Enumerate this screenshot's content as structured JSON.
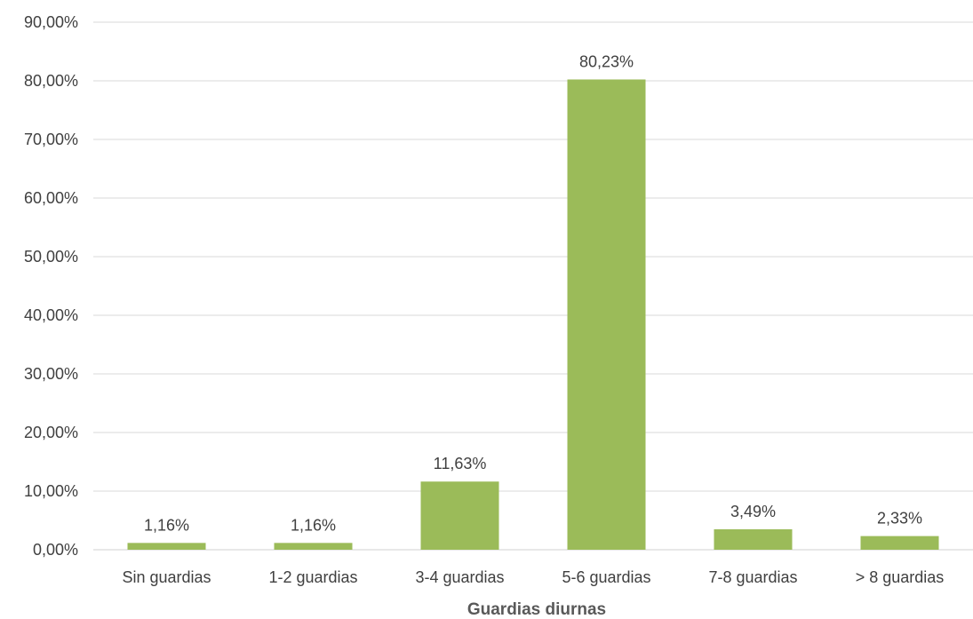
{
  "chart_data": {
    "type": "bar",
    "title": "",
    "xlabel": "Guardias diurnas",
    "ylabel": "",
    "categories": [
      "Sin guardias",
      "1-2 guardias",
      "3-4 guardias",
      "5-6 guardias",
      "7-8 guardias",
      "> 8 guardias"
    ],
    "values": [
      1.16,
      1.16,
      11.63,
      80.23,
      3.49,
      2.33
    ],
    "data_labels": [
      "1,16%",
      "1,16%",
      "11,63%",
      "80,23%",
      "3,49%",
      "2,33%"
    ],
    "ylim": [
      0,
      90
    ],
    "yticks": [
      0,
      10,
      20,
      30,
      40,
      50,
      60,
      70,
      80,
      90
    ],
    "ytick_labels": [
      "0,00%",
      "10,00%",
      "20,00%",
      "30,00%",
      "40,00%",
      "50,00%",
      "60,00%",
      "70,00%",
      "80,00%",
      "90,00%"
    ],
    "grid": true,
    "legend": "none",
    "colors": {
      "bar": "#9bbb59",
      "grid": "#d9d9d9",
      "text": "#404040",
      "axis_title": "#595959"
    }
  }
}
